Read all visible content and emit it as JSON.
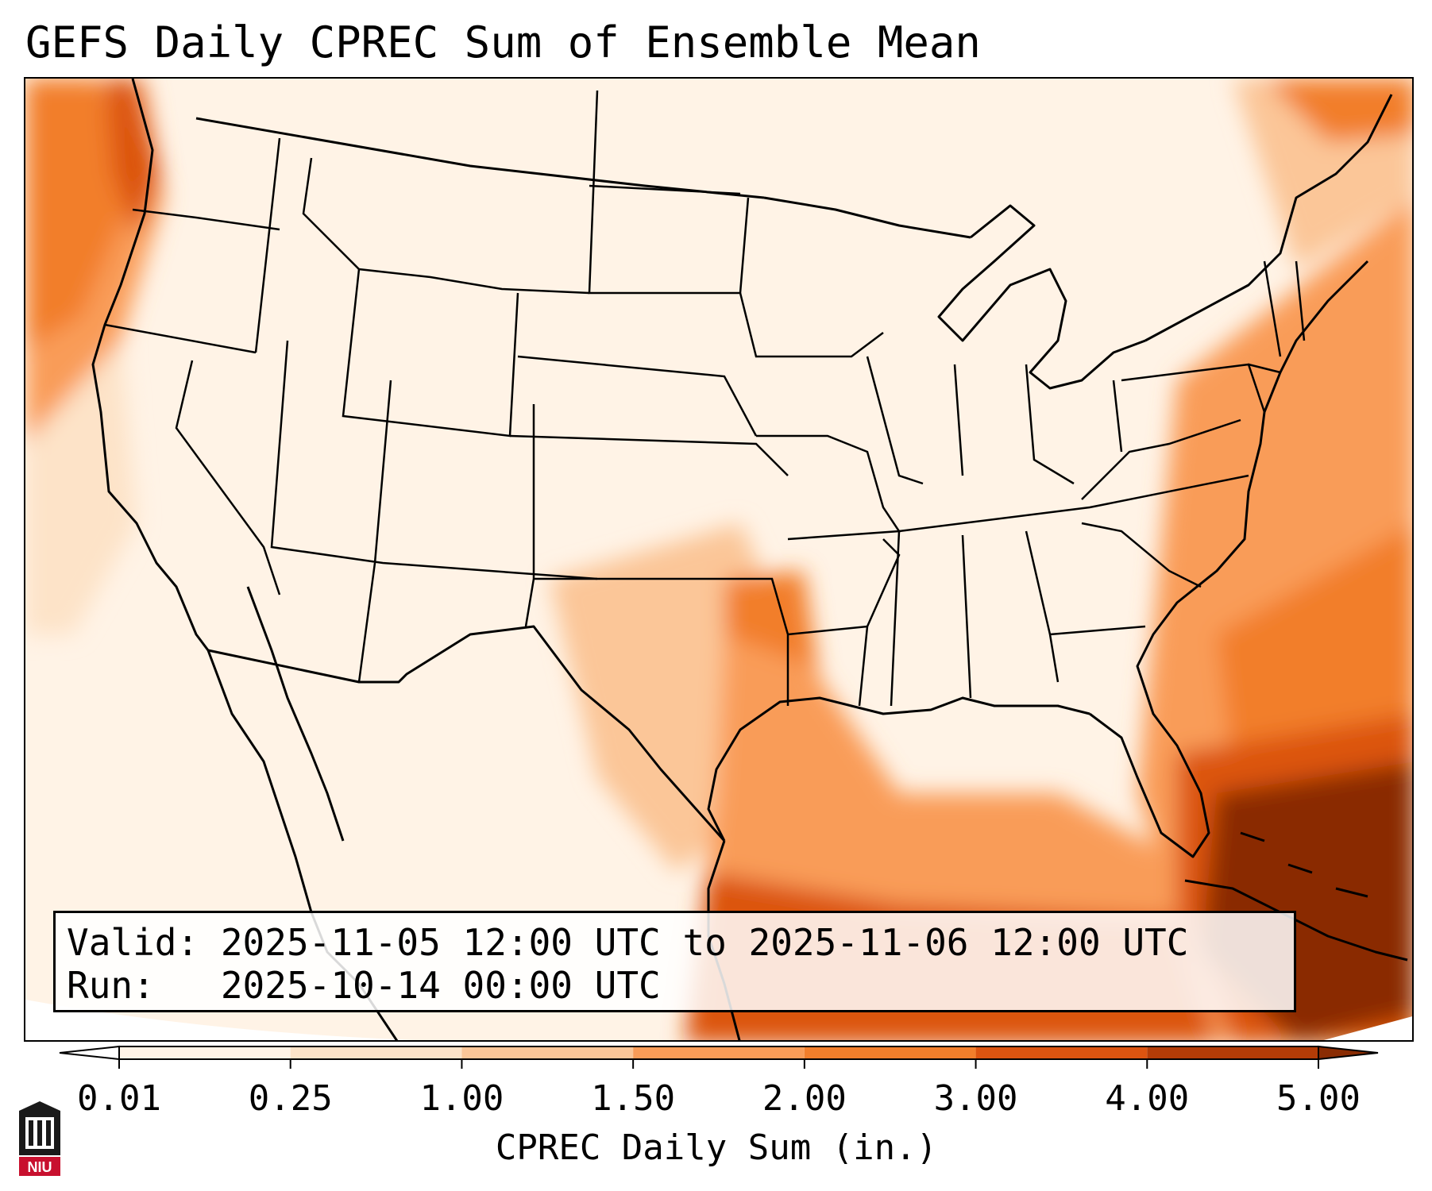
{
  "title": "GEFS Daily CPREC Sum of Ensemble Mean",
  "info": {
    "valid_line": "Valid: 2025-11-05 12:00 UTC to 2025-11-06 12:00 UTC",
    "run_line": "Run:   2025-10-14 00:00 UTC"
  },
  "colorbar": {
    "label": "CPREC Daily Sum (in.)",
    "ticks": [
      "0.01",
      "0.25",
      "1.00",
      "1.50",
      "2.00",
      "3.00",
      "4.00",
      "5.00"
    ],
    "colors": [
      "#fff3e6",
      "#fde3c8",
      "#fbc698",
      "#f99c58",
      "#f27e2b",
      "#dc5410",
      "#b33c07"
    ],
    "under_color": "#ffffff",
    "over_color": "#8a2c03",
    "extend": "both"
  },
  "logo": {
    "text": "NIU",
    "color": "#c8102e"
  }
}
